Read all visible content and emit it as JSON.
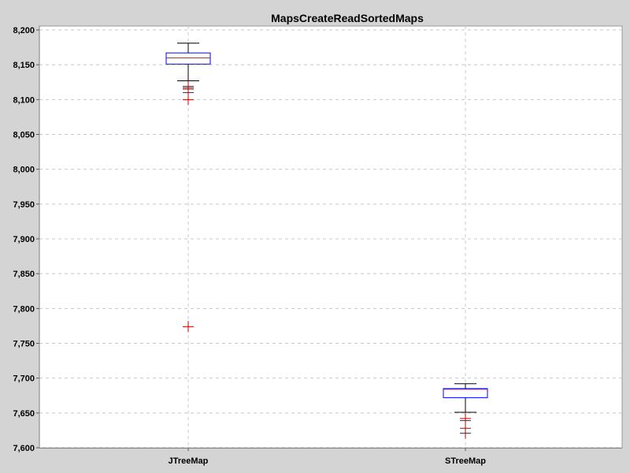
{
  "chart_data": {
    "type": "box",
    "title": "MapsCreateReadSortedMaps",
    "xlabel": "",
    "ylabel": "",
    "ylim": [
      7600,
      8200
    ],
    "y_ticks": [
      "7,600",
      "7,650",
      "7,700",
      "7,750",
      "7,800",
      "7,850",
      "7,900",
      "7,950",
      "8,000",
      "8,050",
      "8,100",
      "8,150",
      "8,200"
    ],
    "y_tick_values": [
      7600,
      7650,
      7700,
      7750,
      7800,
      7850,
      7900,
      7950,
      8000,
      8050,
      8100,
      8150,
      8200
    ],
    "grid": true,
    "categories": [
      "JTreeMap",
      "STreeMap"
    ],
    "boxes": [
      {
        "category": "JTreeMap",
        "q1": 8151,
        "median": 8160,
        "q3": 8167,
        "whisker_low": 8127,
        "whisker_high": 8181,
        "outliers": [
          8119,
          8117,
          8115,
          8110,
          8100,
          7774
        ]
      },
      {
        "category": "STreeMap",
        "q1": 7672,
        "median": 7684,
        "q3": 7685,
        "whisker_low": 7651,
        "whisker_high": 7692,
        "outliers": [
          7642,
          7639,
          7628,
          7621
        ]
      }
    ],
    "colors": {
      "background": "#d4d4d4",
      "plot_background": "#ffffff",
      "gridline": "#c8c8c8",
      "box_outline": "#0000ff",
      "median": "#ff0000",
      "outlier": "#c00000",
      "whisker": "#000000"
    }
  }
}
